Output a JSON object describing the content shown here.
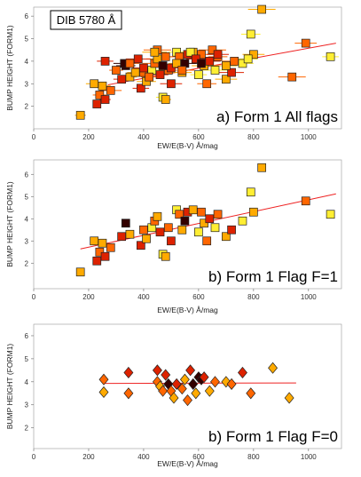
{
  "chart_data": [
    {
      "type": "scatter",
      "title": "a) Form 1 All flags",
      "annotation": "DIB 5780 Å",
      "x_label": "EW/E(B-V) Å/mag",
      "y_label": "BUMP HEIGHT (FORM1)",
      "marker": "square",
      "xlim": [
        0,
        1120
      ],
      "ylim": [
        1,
        6.4
      ],
      "xticks": [
        0,
        200,
        400,
        600,
        800,
        1000
      ],
      "yticks": [
        2,
        3,
        4,
        5,
        6
      ],
      "x": [
        170,
        220,
        230,
        240,
        250,
        260,
        280,
        320,
        335,
        350,
        390,
        400,
        410,
        430,
        440,
        450,
        460,
        470,
        480,
        490,
        500,
        520,
        530,
        540,
        550,
        560,
        580,
        600,
        610,
        620,
        630,
        640,
        660,
        670,
        700,
        720,
        760,
        790,
        800,
        830,
        990,
        1080,
        260,
        300,
        330,
        350,
        370,
        380,
        420,
        450,
        470,
        500,
        520,
        540,
        570,
        590,
        650,
        700,
        730,
        780,
        940,
        670,
        610,
        480,
        440,
        400
      ],
      "y": [
        1.6,
        3.0,
        2.1,
        2.5,
        2.9,
        2.3,
        2.7,
        3.2,
        3.8,
        3.3,
        2.8,
        3.5,
        3.1,
        3.6,
        3.9,
        4.1,
        3.4,
        2.4,
        2.3,
        3.6,
        3.0,
        4.4,
        4.2,
        3.5,
        3.9,
        4.3,
        4.4,
        3.4,
        4.3,
        3.8,
        3.0,
        4.0,
        3.6,
        4.2,
        3.2,
        3.5,
        3.9,
        5.2,
        4.3,
        6.3,
        4.8,
        4.2,
        4.0,
        3.6,
        3.9,
        3.9,
        3.5,
        4.1,
        3.3,
        4.5,
        3.8,
        3.7,
        3.9,
        3.6,
        4.4,
        4.1,
        4.5,
        3.8,
        4.0,
        4.1,
        3.3,
        4.3,
        3.9,
        4.2,
        4.4,
        3.7
      ],
      "xerr": [
        20,
        30,
        15,
        25,
        30,
        20,
        40,
        30,
        35,
        25,
        30,
        40,
        35,
        30,
        45,
        40,
        30,
        25,
        20,
        35,
        40,
        30,
        45,
        35,
        40,
        50,
        35,
        30,
        40,
        45,
        35,
        40,
        50,
        35,
        40,
        45,
        40,
        35,
        40,
        50,
        40,
        30,
        30,
        25,
        40,
        35,
        30,
        45,
        30,
        50,
        35,
        40,
        30,
        45,
        40,
        35,
        50,
        40,
        45,
        35,
        50,
        40,
        35,
        30,
        45,
        40
      ],
      "colors": [
        "#ffaa00",
        "#ffaa00",
        "#dd2200",
        "#ff6600",
        "#ffaa00",
        "#dd2200",
        "#ff6600",
        "#dd2200",
        "#330000",
        "#ffaa00",
        "#dd2200",
        "#ff6600",
        "#ffaa00",
        "#ffee33",
        "#ff6600",
        "#ffaa00",
        "#dd2200",
        "#ffee33",
        "#ffaa00",
        "#ff6600",
        "#dd2200",
        "#ffee33",
        "#ff6600",
        "#ffaa00",
        "#330000",
        "#dd2200",
        "#ffaa00",
        "#ffee33",
        "#ff6600",
        "#ffaa00",
        "#ff6600",
        "#dd2200",
        "#ffee33",
        "#ff6600",
        "#ffaa00",
        "#dd2200",
        "#ffee33",
        "#ffee33",
        "#ffaa00",
        "#ffaa00",
        "#ff6600",
        "#ffee33",
        "#dd2200",
        "#ff6600",
        "#330000",
        "#ff6600",
        "#ffaa00",
        "#dd2200",
        "#ff6600",
        "#ff6600",
        "#330000",
        "#dd2200",
        "#ffaa00",
        "#ff6600",
        "#ffee33",
        "#dd2200",
        "#ff6600",
        "#ffaa00",
        "#ff6600",
        "#ffee33",
        "#ff6600",
        "#dd2200",
        "#330000",
        "#ff6600",
        "#ffaa00",
        "#dd2200"
      ],
      "fit": {
        "x": [
          270,
          1100
        ],
        "y": [
          2.95,
          4.8
        ],
        "color": "#ee2222"
      }
    },
    {
      "type": "scatter",
      "title": "b) Form 1 Flag F=1",
      "x_label": "EW/E(B-V) Å/mag",
      "y_label": "BUMP HEIGHT (FORM1)",
      "marker": "square",
      "xlim": [
        0,
        1120
      ],
      "ylim": [
        0.85,
        6.65
      ],
      "xticks": [
        0,
        200,
        400,
        600,
        800,
        1000
      ],
      "yticks": [
        2,
        3,
        4,
        5,
        6
      ],
      "x": [
        170,
        220,
        230,
        240,
        250,
        260,
        280,
        320,
        335,
        350,
        390,
        400,
        410,
        430,
        440,
        450,
        460,
        470,
        480,
        490,
        500,
        520,
        530,
        540,
        550,
        560,
        580,
        600,
        610,
        620,
        630,
        640,
        660,
        670,
        700,
        720,
        760,
        790,
        800,
        830,
        990,
        1080
      ],
      "y": [
        1.6,
        3.0,
        2.1,
        2.5,
        2.9,
        2.3,
        2.7,
        3.2,
        3.8,
        3.3,
        2.8,
        3.5,
        3.1,
        3.6,
        3.9,
        4.1,
        3.4,
        2.4,
        2.3,
        3.6,
        3.0,
        4.4,
        4.2,
        3.5,
        3.9,
        4.3,
        4.4,
        3.4,
        4.3,
        3.8,
        3.0,
        4.0,
        3.6,
        4.2,
        3.2,
        3.5,
        3.9,
        5.2,
        4.3,
        6.3,
        4.8,
        4.2
      ],
      "colors": [
        "#ffaa00",
        "#ffaa00",
        "#dd2200",
        "#ff6600",
        "#ffaa00",
        "#dd2200",
        "#ff6600",
        "#dd2200",
        "#330000",
        "#ffaa00",
        "#dd2200",
        "#ff6600",
        "#ffaa00",
        "#ffee33",
        "#ff6600",
        "#ffaa00",
        "#dd2200",
        "#ffee33",
        "#ffaa00",
        "#ff6600",
        "#dd2200",
        "#ffee33",
        "#ff6600",
        "#ffaa00",
        "#330000",
        "#dd2200",
        "#ffaa00",
        "#ffee33",
        "#ff6600",
        "#ffaa00",
        "#ff6600",
        "#dd2200",
        "#ffee33",
        "#ff6600",
        "#ffaa00",
        "#dd2200",
        "#ffee33",
        "#ffee33",
        "#ffaa00",
        "#ffaa00",
        "#ff6600",
        "#ffee33"
      ],
      "fit": {
        "x": [
          170,
          1100
        ],
        "y": [
          2.64,
          5.12
        ],
        "color": "#ee2222"
      }
    },
    {
      "type": "scatter",
      "title": "b) Form 1 Flag F=0",
      "x_label": "EW/E(B-V) Å/mag",
      "y_label": "BUMP HEIGHT (FORM1)",
      "marker": "diamond",
      "xlim": [
        0,
        1120
      ],
      "ylim": [
        1.1,
        6.5
      ],
      "xticks": [
        0,
        200,
        400,
        600,
        800,
        1000
      ],
      "yticks": [
        2,
        3,
        4,
        5,
        6
      ],
      "x": [
        255,
        255,
        345,
        345,
        450,
        450,
        460,
        470,
        480,
        490,
        500,
        510,
        520,
        540,
        550,
        560,
        570,
        580,
        590,
        600,
        610,
        620,
        640,
        660,
        700,
        720,
        760,
        790,
        870,
        930
      ],
      "y": [
        4.1,
        3.55,
        4.4,
        3.5,
        4.5,
        4.0,
        3.8,
        3.6,
        4.3,
        3.9,
        3.6,
        3.3,
        3.9,
        3.7,
        4.1,
        3.2,
        4.5,
        3.9,
        3.5,
        4.2,
        4.1,
        4.2,
        3.6,
        4.0,
        4.0,
        3.9,
        4.4,
        3.5,
        4.6,
        3.3
      ],
      "colors": [
        "#ff6600",
        "#ffaa00",
        "#dd2200",
        "#ff6600",
        "#dd2200",
        "#ff6600",
        "#ffaa00",
        "#ff6600",
        "#dd2200",
        "#330000",
        "#ff6600",
        "#ffaa00",
        "#dd2200",
        "#ff6600",
        "#ffaa00",
        "#ff6600",
        "#dd2200",
        "#330000",
        "#ffaa00",
        "#330000",
        "#330000",
        "#dd2200",
        "#ffaa00",
        "#ff6600",
        "#ffaa00",
        "#ff6600",
        "#dd2200",
        "#ff6600",
        "#ffaa00",
        "#ffaa00"
      ],
      "fit": {
        "x": [
          255,
          955
        ],
        "y": [
          3.93,
          3.95
        ],
        "color": "#ee2222"
      }
    }
  ]
}
